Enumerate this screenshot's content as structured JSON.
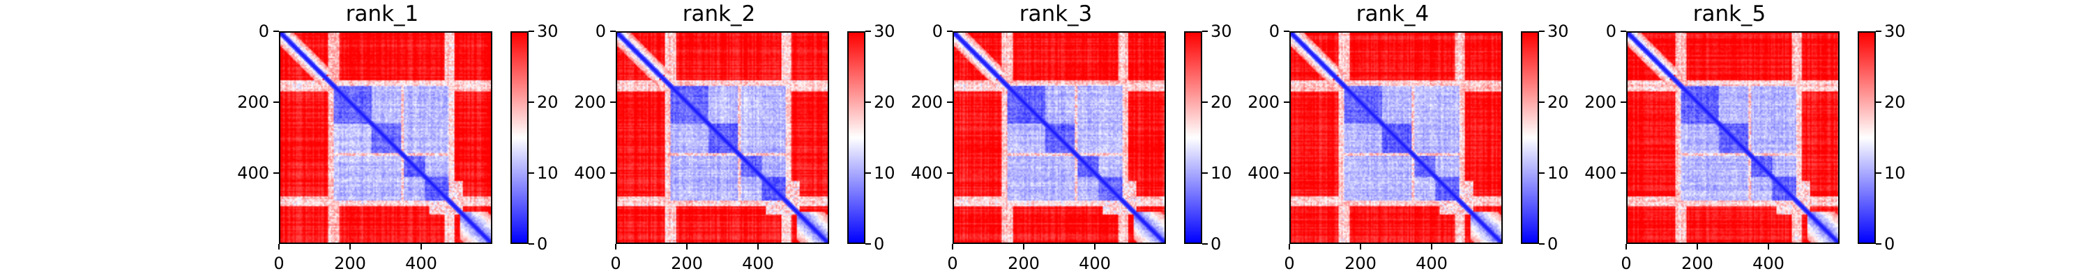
{
  "chart_data": [
    {
      "type": "heatmap",
      "title": "rank_1",
      "x_ticks": [
        0,
        200,
        400
      ],
      "y_ticks": [
        0,
        200,
        400
      ],
      "xlim": [
        0,
        600
      ],
      "ylim": [
        600,
        0
      ],
      "colorbar": {
        "ticks": [
          0,
          10,
          20,
          30
        ],
        "range": [
          0,
          30
        ],
        "colors": [
          "#0000ff",
          "#ffffff",
          "#ff0000"
        ]
      },
      "structure": {
        "size": 600,
        "domain_start": 150,
        "domain_end": 480,
        "subdomain_boundaries": [
          260,
          345,
          410
        ],
        "low_region_values": [
          3,
          5
        ],
        "high_region_values": [
          28,
          30
        ],
        "domain_values": [
          4,
          9
        ]
      }
    },
    {
      "type": "heatmap",
      "title": "rank_2",
      "x_ticks": [
        0,
        200,
        400
      ],
      "y_ticks": [
        0,
        200,
        400
      ],
      "xlim": [
        0,
        600
      ],
      "ylim": [
        600,
        0
      ],
      "colorbar": {
        "ticks": [
          0,
          10,
          20,
          30
        ],
        "range": [
          0,
          30
        ],
        "colors": [
          "#0000ff",
          "#ffffff",
          "#ff0000"
        ]
      },
      "structure": {
        "size": 600,
        "domain_start": 150,
        "domain_end": 480,
        "subdomain_boundaries": [
          260,
          345,
          410
        ],
        "low_region_values": [
          3,
          5
        ],
        "high_region_values": [
          28,
          30
        ],
        "domain_values": [
          4,
          9
        ]
      }
    },
    {
      "type": "heatmap",
      "title": "rank_3",
      "x_ticks": [
        0,
        200,
        400
      ],
      "y_ticks": [
        0,
        200,
        400
      ],
      "xlim": [
        0,
        600
      ],
      "ylim": [
        600,
        0
      ],
      "colorbar": {
        "ticks": [
          0,
          10,
          20,
          30
        ],
        "range": [
          0,
          30
        ],
        "colors": [
          "#0000ff",
          "#ffffff",
          "#ff0000"
        ]
      },
      "structure": {
        "size": 600,
        "domain_start": 150,
        "domain_end": 480,
        "subdomain_boundaries": [
          260,
          345,
          410
        ],
        "low_region_values": [
          3,
          5
        ],
        "high_region_values": [
          28,
          30
        ],
        "domain_values": [
          4,
          9
        ]
      }
    },
    {
      "type": "heatmap",
      "title": "rank_4",
      "x_ticks": [
        0,
        200,
        400
      ],
      "y_ticks": [
        0,
        200,
        400
      ],
      "xlim": [
        0,
        600
      ],
      "ylim": [
        600,
        0
      ],
      "colorbar": {
        "ticks": [
          0,
          10,
          20,
          30
        ],
        "range": [
          0,
          30
        ],
        "colors": [
          "#0000ff",
          "#ffffff",
          "#ff0000"
        ]
      },
      "structure": {
        "size": 600,
        "domain_start": 150,
        "domain_end": 480,
        "subdomain_boundaries": [
          260,
          345,
          410
        ],
        "low_region_values": [
          3,
          5
        ],
        "high_region_values": [
          28,
          30
        ],
        "domain_values": [
          4,
          9
        ]
      }
    },
    {
      "type": "heatmap",
      "title": "rank_5",
      "x_ticks": [
        0,
        200,
        400
      ],
      "y_ticks": [
        0,
        200,
        400
      ],
      "xlim": [
        0,
        600
      ],
      "ylim": [
        600,
        0
      ],
      "colorbar": {
        "ticks": [
          0,
          10,
          20,
          30
        ],
        "range": [
          0,
          30
        ],
        "colors": [
          "#0000ff",
          "#ffffff",
          "#ff0000"
        ]
      },
      "structure": {
        "size": 600,
        "domain_start": 150,
        "domain_end": 480,
        "subdomain_boundaries": [
          260,
          345,
          410
        ],
        "low_region_values": [
          3,
          5
        ],
        "high_region_values": [
          28,
          30
        ],
        "domain_values": [
          4,
          9
        ]
      }
    }
  ]
}
